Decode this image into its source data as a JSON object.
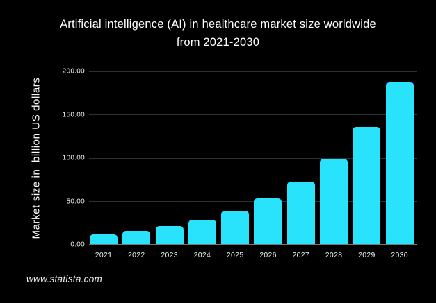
{
  "title": {
    "line1": "Artificial intelligence (AI) in healthcare market size worldwide",
    "line2": "from 2021-2030"
  },
  "footer": {
    "text": "www.statista.com"
  },
  "colors": {
    "background": "#000000",
    "bar": "#29e2fc",
    "text": "#f5f5f5",
    "gridline": "#303030",
    "baseline": "#777777"
  },
  "chart_data": {
    "type": "bar",
    "title": "Artificial intelligence (AI) in healthcare market size worldwide from 2021-2030",
    "categories": [
      "2021",
      "2022",
      "2023",
      "2024",
      "2025",
      "2026",
      "2027",
      "2028",
      "2029",
      "2030"
    ],
    "values": [
      11.06,
      15.1,
      20.65,
      28.24,
      38.66,
      52.9,
      72.39,
      99.06,
      135.57,
      187.95
    ],
    "xlabel": "",
    "ylabel": "Market size in  billion US dollars",
    "ylim": [
      0,
      200
    ],
    "ytick_labels_top_to_bottom": [
      "200.00",
      "150.00",
      "100.00",
      "50.00",
      "0.00"
    ],
    "grid": true,
    "legend": false
  }
}
